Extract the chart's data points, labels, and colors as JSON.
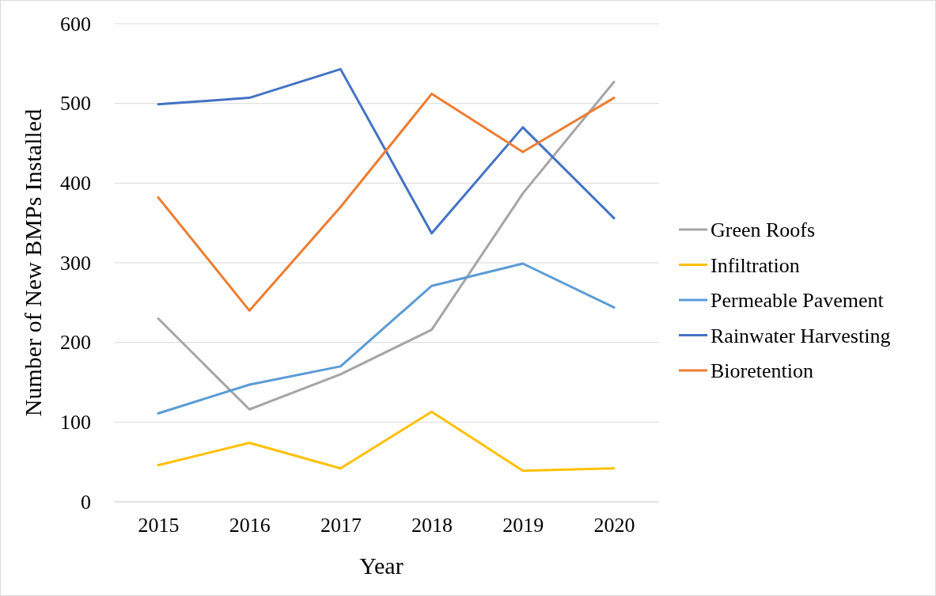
{
  "chart_data": {
    "type": "line",
    "xlabel": "Year",
    "ylabel": "Number of New BMPs Installed",
    "categories": [
      "2015",
      "2016",
      "2017",
      "2018",
      "2019",
      "2020"
    ],
    "series": [
      {
        "name": "Green Roofs",
        "color": "#a5a5a5",
        "values": [
          230,
          116,
          160,
          216,
          387,
          527
        ]
      },
      {
        "name": "Infiltration",
        "color": "#ffc000",
        "values": [
          46,
          74,
          42,
          113,
          39,
          42
        ]
      },
      {
        "name": "Permeable Pavement",
        "color": "#5b9bd5",
        "values": [
          111,
          147,
          170,
          271,
          299,
          244
        ]
      },
      {
        "name": "Rainwater Harvesting",
        "color": "#4472c4",
        "values": [
          499,
          507,
          543,
          337,
          470,
          356
        ]
      },
      {
        "name": "Bioretention",
        "color": "#ed7d31",
        "values": [
          382,
          240,
          370,
          512,
          439,
          507
        ]
      }
    ],
    "ylim": [
      0,
      600
    ],
    "yticks": [
      0,
      100,
      200,
      300,
      400,
      500,
      600
    ],
    "grid": "y",
    "legend": "right",
    "marker": "none",
    "line_style": "solid"
  }
}
